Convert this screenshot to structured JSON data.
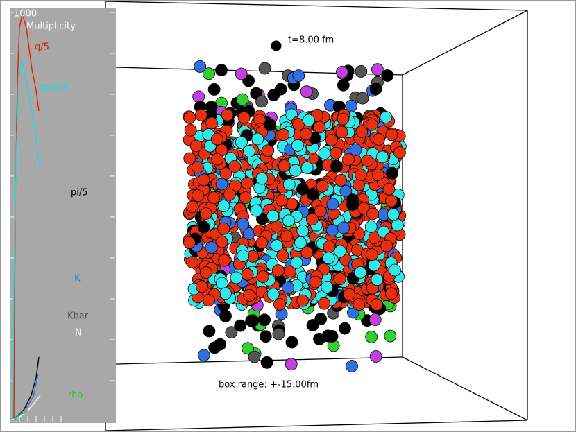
{
  "panel": {
    "scale_label": "1000",
    "title": "Multiplicity",
    "labels": [
      "q/5",
      "qbar/5",
      "pi/5",
      "K",
      "Kbar",
      "N",
      "rho"
    ]
  },
  "view": {
    "time": "t=8.00 fm",
    "box_range": "box range: +-15.00fm"
  }
}
